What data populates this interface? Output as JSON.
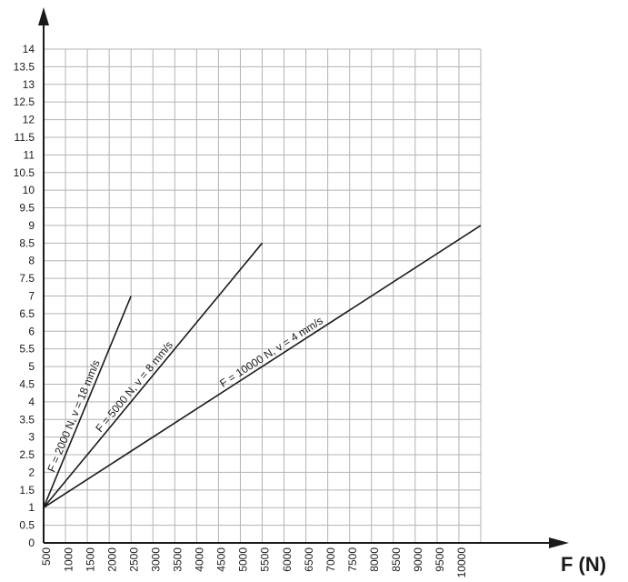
{
  "chart_data": {
    "type": "line",
    "title": "",
    "xlabel": "F (N)",
    "ylabel": "",
    "xlim": [
      0,
      10000
    ],
    "ylim": [
      0,
      14
    ],
    "x_ticks": [
      500,
      1000,
      1500,
      2000,
      2500,
      3000,
      3500,
      4000,
      4500,
      5000,
      5500,
      6000,
      6500,
      7000,
      7500,
      8000,
      8500,
      9000,
      9500,
      10000
    ],
    "x_tick_labels": [
      "500",
      "1000",
      "1500",
      "2000",
      "2500",
      "3000",
      "3500",
      "4000",
      "4500",
      "5000",
      "5500",
      "6000",
      "6500",
      "7000",
      "7500",
      "8000",
      "8500",
      "9000",
      "9500",
      "10000"
    ],
    "y_ticks": [
      0,
      0.5,
      1,
      1.5,
      2,
      2.5,
      3,
      3.5,
      4,
      4.5,
      5,
      5.5,
      6,
      6.5,
      7,
      7.5,
      8,
      8.5,
      9,
      9.5,
      10,
      10.5,
      11,
      11.5,
      12,
      12.5,
      13,
      13.5,
      14
    ],
    "y_tick_labels": [
      "0",
      "0.5",
      "1",
      "1.5",
      "2",
      "2.5",
      "3",
      "3.5",
      "4",
      "4.5",
      "5",
      "5.5",
      "6",
      "6.5",
      "7",
      "7.5",
      "8",
      "8.5",
      "9",
      "9.5",
      "10",
      "10.5",
      "11",
      "11.5",
      "12",
      "12.5",
      "13",
      "13.5",
      "14"
    ],
    "grid": true,
    "series": [
      {
        "name": "F = 2000 N, v = 18 mm/s",
        "x": [
          0,
          2000
        ],
        "y": [
          1,
          7
        ]
      },
      {
        "name": "F = 5000 N, v = 8 mm/s",
        "x": [
          0,
          5000
        ],
        "y": [
          1,
          8.5
        ]
      },
      {
        "name": "F = 10000 N, v = 4 mm/s",
        "x": [
          0,
          10000
        ],
        "y": [
          1,
          9
        ]
      }
    ]
  }
}
